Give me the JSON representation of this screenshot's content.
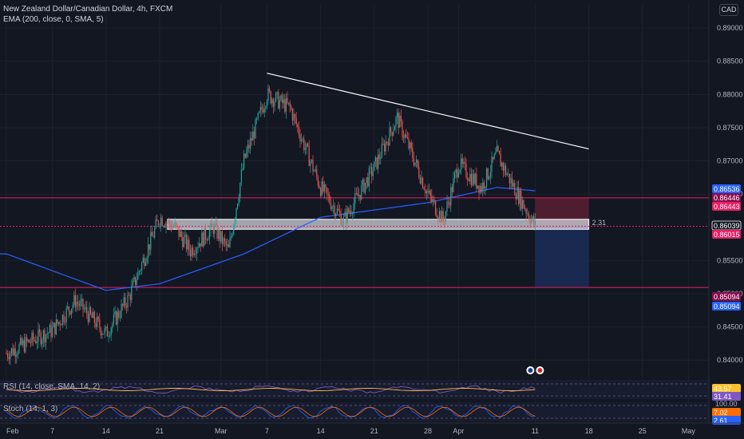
{
  "header": {
    "symbol_line": "New Zealand Dollar/Canadian Dollar, 4h, FXCM",
    "indicator_line": "EMA (200, close, 0, SMA, 5)",
    "currency_button": "CAD"
  },
  "colors": {
    "background": "#131722",
    "up_candle": "#26a69a",
    "down_candle": "#ef5350",
    "ema_line": "#2962ff",
    "level_line": "#e91e63",
    "trendline": "#ffffff",
    "stop_zone": "#5b1f33",
    "target_zone": "#1c2b55"
  },
  "chart_data": {
    "type": "candlestick",
    "symbol": "New Zealand Dollar/Canadian Dollar",
    "timeframe": "4h",
    "source": "FXCM",
    "ylim": [
      0.8375,
      0.8935
    ],
    "price_axis_ticks": [
      "0.89000",
      "0.88500",
      "0.88000",
      "0.87500",
      "0.87000",
      "0.86500",
      "0.85500",
      "0.85000",
      "0.84500",
      "0.84000"
    ],
    "time_axis_ticks": [
      "Feb",
      "7",
      "14",
      "21",
      "Mar",
      "7",
      "14",
      "21",
      "28",
      "Apr",
      "11",
      "18",
      "25",
      "May"
    ],
    "price_path": [
      {
        "date": "Feb 1",
        "price": 0.841
      },
      {
        "date": "Feb 7",
        "price": 0.8445
      },
      {
        "date": "Feb 10",
        "price": 0.849
      },
      {
        "date": "Feb 14",
        "price": 0.844
      },
      {
        "date": "Feb 17",
        "price": 0.8495
      },
      {
        "date": "Feb 21",
        "price": 0.8615
      },
      {
        "date": "Feb 23",
        "price": 0.86
      },
      {
        "date": "Feb 25",
        "price": 0.8565
      },
      {
        "date": "Feb 28",
        "price": 0.86
      },
      {
        "date": "Mar 2",
        "price": 0.8565
      },
      {
        "date": "Mar 4",
        "price": 0.87
      },
      {
        "date": "Mar 7",
        "price": 0.88
      },
      {
        "date": "Mar 10",
        "price": 0.878
      },
      {
        "date": "Mar 14",
        "price": 0.866
      },
      {
        "date": "Mar 17",
        "price": 0.861
      },
      {
        "date": "Mar 21",
        "price": 0.869
      },
      {
        "date": "Mar 24",
        "price": 0.8765
      },
      {
        "date": "Mar 28",
        "price": 0.865
      },
      {
        "date": "Mar 30",
        "price": 0.861
      },
      {
        "date": "Apr 1",
        "price": 0.8695
      },
      {
        "date": "Apr 4",
        "price": 0.866
      },
      {
        "date": "Apr 6",
        "price": 0.871
      },
      {
        "date": "Apr 8",
        "price": 0.8665
      },
      {
        "date": "Apr 11",
        "price": 0.8602
      }
    ],
    "ema_path": [
      {
        "date": "Feb 1",
        "price": 0.856
      },
      {
        "date": "Feb 14",
        "price": 0.8505
      },
      {
        "date": "Feb 21",
        "price": 0.8515
      },
      {
        "date": "Mar 4",
        "price": 0.856
      },
      {
        "date": "Mar 14",
        "price": 0.8615
      },
      {
        "date": "Mar 28",
        "price": 0.8637
      },
      {
        "date": "Apr 6",
        "price": 0.866
      },
      {
        "date": "Apr 11",
        "price": 0.8655
      }
    ],
    "trendline": {
      "from": {
        "date": "Mar 7",
        "price": 0.8832
      },
      "to": {
        "date": "Apr 18",
        "price": 0.8718
      }
    },
    "support_zone": {
      "from": "Feb 22",
      "to": "Apr 18",
      "high": 0.8612,
      "low": 0.8597
    },
    "horizontal_levels": [
      0.86443,
      0.86015,
      0.85094
    ],
    "short_position": {
      "from": "Apr 11",
      "to": "Apr 18",
      "entry": 0.8602,
      "stop": 0.8644,
      "target": 0.85094,
      "ratio_label": "2.31"
    },
    "price_labels": [
      {
        "text": "0.86536",
        "color": "#2962ff",
        "price": 0.86536
      },
      {
        "text": "0.86446",
        "color": "#880e4f",
        "price": 0.86446
      },
      {
        "text": "0.86443",
        "color": "#e91e63",
        "price": 0.86443
      },
      {
        "text": "0.86039",
        "color": "#131722",
        "price": 0.86039
      },
      {
        "text": "0.86015",
        "color": "#e91e63",
        "price": 0.86015
      },
      {
        "text": "0.85094",
        "color": "#880e4f",
        "price": 0.85094
      },
      {
        "text": "0.85094",
        "color": "#2962ff",
        "price": 0.85094
      }
    ]
  },
  "rsi_pane": {
    "label": "RSI (14, close, SMA, 14, 2)",
    "value_1": "43.57",
    "value_2": "31.41"
  },
  "stoch_pane": {
    "label": "Stoch (14, 1, 3)",
    "upper": "100.00",
    "value_1": "7.02",
    "value_2": "2.61"
  }
}
